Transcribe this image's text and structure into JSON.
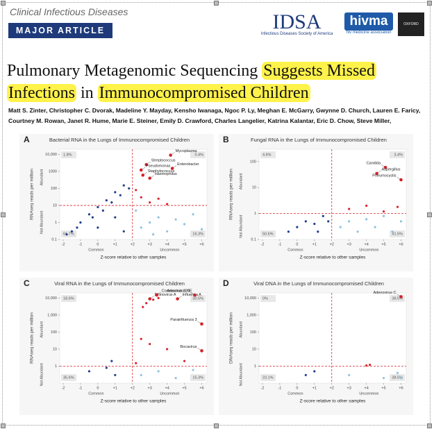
{
  "header": {
    "journal": "Clinical Infectious Diseases",
    "article_type": "MAJOR ARTICLE",
    "logo_idsa": "IDSA",
    "logo_idsa_sub": "Infectious Diseases Society of America",
    "logo_hivma": "hivma",
    "logo_hivma_sub": "hiv medicine association",
    "logo_oxford": "OXFORD"
  },
  "title_lines": [
    [
      {
        "text": "Pulmonary Metagenomic Sequencing ",
        "highlight": false
      },
      {
        "text": "Suggests Missed",
        "highlight": true
      }
    ],
    [
      {
        "text": "Infections",
        "highlight": true
      },
      {
        "text": " in ",
        "highlight": false
      },
      {
        "text": "Immunocompromised Children",
        "highlight": true
      }
    ]
  ],
  "authors": [
    "Matt S. Zinter, Christopher C. Dvorak, Madeline Y. Mayday, Kensho Iwanaga, Ngoc P. Ly, Meghan E. McGarry, Gwynne D. Church, Lauren E. Faricy,",
    "Courtney M. Rowan, Janet R. Hume, Marie E. Steiner, Emily D. Crawford, Charles Langelier, Katrina Kalantar, Eric D. Chow, Steve Miller,"
  ],
  "chart_data": [
    {
      "type": "scatter",
      "panel": "A",
      "title": "Bacterial RNA in the Lungs of Immunocompromised Children",
      "xlabel": "Z-score relative to other samples",
      "ylabel": "RNAseq reads per million",
      "x_left_label": "Common",
      "x_right_label": "Uncommon",
      "y_high_label": "Abundant",
      "y_low_label": "Not Abundant",
      "quadrant_labels": [
        "1.8%",
        "0.4%",
        "61.7%",
        "16.3%"
      ],
      "log_y": true,
      "xlim": [
        -2.2,
        6.3
      ],
      "ylim": [
        0.1,
        20000
      ],
      "xticks": [
        -2,
        -1,
        0,
        {
          "value": 1,
          "label": "+1"
        },
        {
          "value": 2,
          "label": "+2"
        },
        {
          "value": 3,
          "label": "+3"
        },
        {
          "value": 4,
          "label": "+4"
        },
        {
          "value": 5,
          "label": "+5"
        },
        {
          "value": 6,
          "label": "+6"
        }
      ],
      "yticks": [
        0.1,
        1,
        10,
        100,
        1000,
        {
          "value": 10000,
          "label": "10,000"
        }
      ],
      "threshold_x": 2,
      "threshold_y": 10,
      "color_common": "#1f3f8f",
      "color_uncommon": "#8ec3e0",
      "color_hit": "#d9232a",
      "x": [
        -1.5,
        -1,
        -0.5,
        0,
        0.5,
        1,
        1.5,
        -1.2,
        -0.3,
        0.3,
        0.8,
        1.3,
        1.8,
        -1.8,
        0,
        1,
        1.5,
        2.5,
        3,
        3.5,
        4,
        4.5,
        5,
        5.5,
        6,
        2.2,
        3.2,
        2.2,
        2.5,
        3,
        3.5,
        4
      ],
      "values": [
        0.3,
        1,
        3,
        8,
        20,
        60,
        150,
        0.5,
        2,
        5,
        15,
        40,
        100,
        0.2,
        0.5,
        2,
        0.3,
        0.5,
        1,
        2,
        0.3,
        1.5,
        0.8,
        3,
        0.4,
        5,
        0.2,
        80,
        30,
        15,
        25,
        12
      ],
      "labeled_points": [
        {
          "label": "Mycoplasma",
          "x": 4.2,
          "y": 9000
        },
        {
          "label": "Streptococcus",
          "x": 2.8,
          "y": 2500
        },
        {
          "label": "Enterobacter",
          "x": 4.3,
          "y": 1500
        },
        {
          "label": "Pseudomonas",
          "x": 2.5,
          "y": 1200
        },
        {
          "label": "Staphylococcus",
          "x": 2.6,
          "y": 600
        },
        {
          "label": "Haemophilus",
          "x": 3.0,
          "y": 400
        }
      ]
    },
    {
      "type": "scatter",
      "panel": "B",
      "title": "Fungal RNA in the Lungs of Immunocompromised Children",
      "xlabel": "Z-score relative to other samples",
      "ylabel": "RNAseq reads per million",
      "x_left_label": "Common",
      "x_right_label": "Uncommon",
      "y_high_label": "Abundant",
      "y_low_label": "Not Abundant",
      "quadrant_labels": [
        "4.6%",
        "3.4%",
        "50.6%",
        "41.5%"
      ],
      "log_y": true,
      "xlim": [
        -2.2,
        6.3
      ],
      "ylim": [
        0.1,
        300
      ],
      "xticks": [
        -2,
        -1,
        0,
        {
          "value": 1,
          "label": "+1"
        },
        {
          "value": 2,
          "label": "+2"
        },
        {
          "value": 3,
          "label": "+3"
        },
        {
          "value": 4,
          "label": "+4"
        },
        {
          "value": 5,
          "label": "+5"
        },
        {
          "value": 6,
          "label": "+6"
        }
      ],
      "yticks": [
        0.1,
        1,
        10,
        100
      ],
      "threshold_x": 2,
      "threshold_y": 1,
      "color_common": "#1f3f8f",
      "color_uncommon": "#8ec3e0",
      "color_hit": "#d9232a",
      "x": [
        0,
        0.5,
        1,
        1.5,
        1.8,
        -0.5,
        1.2,
        2.5,
        3,
        3.5,
        4,
        4.5,
        5,
        5.5,
        6,
        3,
        4,
        5,
        5.8
      ],
      "values": [
        0.3,
        0.5,
        0.4,
        0.8,
        0.5,
        0.2,
        0.2,
        0.3,
        0.5,
        0.2,
        0.6,
        0.3,
        0.8,
        0.2,
        0.5,
        1.5,
        2,
        1.2,
        1.8
      ],
      "labeled_points": [
        {
          "label": "Candida",
          "x": 5.1,
          "y": 60
        },
        {
          "label": "Aspergillus",
          "x": 4.6,
          "y": 35
        },
        {
          "label": "Pneumocystis",
          "x": 6.0,
          "y": 20
        }
      ]
    },
    {
      "type": "scatter",
      "panel": "C",
      "title": "Viral RNA in the Lungs of Immunocompromised Children",
      "xlabel": "Z-score relative to other samples",
      "ylabel": "RNAseq reads per million",
      "x_left_label": "Common",
      "x_right_label": "Uncommon",
      "y_high_label": "Abundant",
      "y_low_label": "Not Abundant",
      "quadrant_labels": [
        "18.6%",
        "30.5%",
        "35.6%",
        "15.3%"
      ],
      "log_y": true,
      "xlim": [
        -2.2,
        6.3
      ],
      "ylim": [
        0.1,
        20000
      ],
      "xticks": [
        -2,
        -1,
        0,
        {
          "value": 1,
          "label": "+1"
        },
        {
          "value": 2,
          "label": "+2"
        },
        {
          "value": 3,
          "label": "+3"
        },
        {
          "value": 4,
          "label": "+4"
        },
        {
          "value": 5,
          "label": "+5"
        },
        {
          "value": 6,
          "label": "+6"
        }
      ],
      "yticks": [
        1,
        10,
        100,
        {
          "value": 1000,
          "label": "1,000"
        },
        {
          "value": 10000,
          "label": "10,000"
        }
      ],
      "threshold_x": 2,
      "threshold_y": 1,
      "color_common": "#1f3f8f",
      "color_uncommon": "#8ec3e0",
      "color_hit": "#d9232a",
      "x": [
        2.6,
        2.8,
        3.2,
        3.5,
        2.5,
        3,
        4,
        5,
        2.2,
        0.5,
        1,
        0.8,
        -0.5,
        2.5,
        3.5,
        4.5,
        5.5
      ],
      "values": [
        3000,
        5000,
        8000,
        10000,
        40,
        20,
        10,
        2,
        1.5,
        0.8,
        0.3,
        2,
        0.5,
        0.3,
        0.5,
        0.2,
        0.6
      ],
      "labeled_points": [
        {
          "label": "Rhinovirus A",
          "x": 3.0,
          "y": 9000
        },
        {
          "label": "Coronavirus 229E",
          "x": 3.4,
          "y": 15000
        },
        {
          "label": "Influenza A",
          "x": 4.6,
          "y": 9000
        },
        {
          "label": "Adenovirus C",
          "x": 5.6,
          "y": 15000
        },
        {
          "label": "Parainfluenza 3",
          "x": 6.0,
          "y": 300
        },
        {
          "label": "Bocavirus",
          "x": 6.0,
          "y": 8
        }
      ]
    },
    {
      "type": "scatter",
      "panel": "D",
      "title": "Viral DNA in the Lungs of Immunocompromised Children",
      "xlabel": "Z-score relative to other samples",
      "ylabel": "DNAseq reads per million",
      "x_left_label": "Common",
      "x_right_label": "Uncommon",
      "y_high_label": "Abundant",
      "y_low_label": "Not Abundant",
      "quadrant_labels": [
        "0%",
        "38.5%",
        "23.1%",
        "38.5%"
      ],
      "log_y": true,
      "xlim": [
        -2.2,
        6.3
      ],
      "ylim": [
        0.1,
        20000
      ],
      "xticks": [
        -2,
        -1,
        0,
        {
          "value": 1,
          "label": "+1"
        },
        {
          "value": 2,
          "label": "+2"
        },
        {
          "value": 3,
          "label": "+3"
        },
        {
          "value": 4,
          "label": "+4"
        },
        {
          "value": 5,
          "label": "+5"
        },
        {
          "value": 6,
          "label": "+6"
        }
      ],
      "yticks": [
        1,
        10,
        100,
        {
          "value": 1000,
          "label": "1,000"
        },
        {
          "value": 10000,
          "label": "10,000"
        }
      ],
      "threshold_x": 2,
      "threshold_y": 1,
      "color_common": "#1f3f8f",
      "color_uncommon": "#8ec3e0",
      "color_hit": "#d9232a",
      "x": [
        4.0,
        4.2,
        0.5,
        1,
        3,
        5,
        5.8,
        6
      ],
      "values": [
        1.1,
        1.2,
        0.3,
        0.5,
        0.3,
        0.2,
        0.4,
        0.2
      ],
      "labeled_points": [
        {
          "label": "Adenovirus C",
          "x": 6.0,
          "y": 12000
        }
      ]
    }
  ]
}
